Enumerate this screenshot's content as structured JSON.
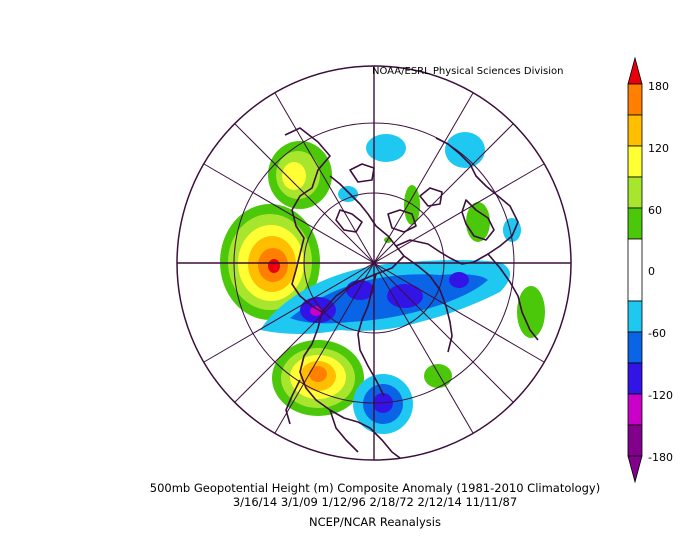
{
  "credit": "NOAA/ESRL Physical Sciences Division",
  "title": {
    "line1": "500mb Geopotential Height (m) Composite Anomaly (1981-2010 Climatology)",
    "line2": "3/16/14 3/1/09 1/12/96 2/18/72 2/12/14 11/11/87",
    "line3": "NCEP/NCAR Reanalysis"
  },
  "colorbar": {
    "ticks": [
      "180",
      "120",
      "60",
      "0",
      "-60",
      "-120",
      "-180"
    ],
    "colors": [
      "#e8000b",
      "#ff7f00",
      "#ffbf00",
      "#ffff33",
      "#a8e62e",
      "#4cc80a",
      "#ffffff",
      "#ffffff",
      "#1ec8f0",
      "#0a64e6",
      "#3214e6",
      "#c800c8",
      "#82008c"
    ]
  },
  "map": {
    "projection": "north-polar-stereographic",
    "positive_anomalies": [
      {
        "region": "western-north-america",
        "peak": "150"
      },
      {
        "region": "alaska",
        "peak": "90"
      },
      {
        "region": "central-asia",
        "peak": "120"
      },
      {
        "region": "europe",
        "peak": "60"
      }
    ],
    "negative_anomalies": [
      {
        "region": "eastern-canada",
        "peak": "-150"
      },
      {
        "region": "eastern-siberia",
        "peak": "-120"
      },
      {
        "region": "pacific",
        "peak": "-120"
      }
    ]
  }
}
